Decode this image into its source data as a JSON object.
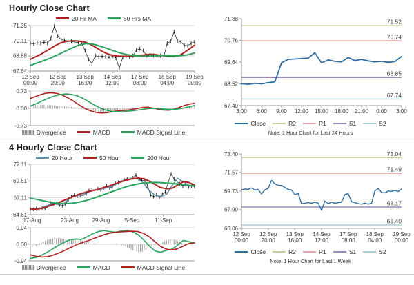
{
  "panels": {
    "hourly_title": "Hourly Close Chart",
    "four_hourly_title": "4 Hourly Close Chart"
  },
  "chart_data": [
    {
      "key": "hourly_main",
      "type": "line",
      "title": "Hourly Close Chart",
      "ylim": [
        67.64,
        71.35
      ],
      "grid": true,
      "yticks": [
        [
          71.35,
          "71.35"
        ],
        [
          70.11,
          "70.11"
        ],
        [
          68.88,
          "68.88"
        ],
        [
          67.64,
          "67.64"
        ]
      ],
      "xticks": [
        [
          0,
          "12 Sep",
          "00:00"
        ],
        [
          0.167,
          "12 Sep",
          "20:00"
        ],
        [
          0.333,
          "13 Sep",
          "16:00"
        ],
        [
          0.5,
          "14 Sep",
          "12:00"
        ],
        [
          0.667,
          "17 Sep",
          "08:00"
        ],
        [
          0.833,
          "18 Sep",
          "04:00"
        ],
        [
          1,
          "19 Sep",
          "00:00"
        ]
      ],
      "legend": [
        {
          "label": "20 Hr MA",
          "color": "#b02020"
        },
        {
          "label": "50 Hrs MA",
          "color": "#2aa35c"
        }
      ],
      "series": [
        {
          "name": "Close",
          "color": "#1a1a1a",
          "w": 0.7,
          "wick": 0.16,
          "values": [
            69.9,
            69.85,
            69.95,
            69.9,
            70.0,
            69.9,
            70.3,
            71.3,
            70.5,
            70.2,
            70.15,
            70.1,
            70.05,
            70.0,
            69.95,
            69.9,
            69.3,
            68.6,
            68.25,
            68.9,
            68.8,
            68.85,
            68.8,
            68.75,
            68.85,
            68.7,
            67.9,
            68.75,
            68.85,
            68.8,
            68.9,
            69.35,
            69.45,
            69.3,
            68.9,
            68.95,
            68.9,
            68.85,
            68.9,
            68.85,
            69.9,
            70.05,
            70.85,
            70.1,
            70.0,
            69.75,
            69.7,
            69.9,
            70.0
          ]
        },
        {
          "name": "20 Hr MA",
          "color": "#b02020",
          "w": 2,
          "values": [
            68.6,
            68.8,
            69.0,
            69.25,
            69.5,
            69.75,
            69.95,
            70.05,
            70.1,
            70.1,
            70.05,
            69.95,
            69.75,
            69.5,
            69.25,
            69.05,
            68.92,
            68.87,
            68.85,
            68.85,
            68.86,
            68.9,
            68.95,
            69.0,
            69.0,
            68.95,
            68.88,
            68.84,
            68.82,
            68.9,
            69.15,
            69.45,
            69.75
          ]
        },
        {
          "name": "50 Hrs MA",
          "color": "#2aa35c",
          "w": 2,
          "values": [
            68.1,
            68.25,
            68.4,
            68.55,
            68.72,
            68.9,
            69.1,
            69.3,
            69.5,
            69.68,
            69.82,
            69.88,
            69.85,
            69.75,
            69.62,
            69.48,
            69.32,
            69.18,
            69.06,
            68.97,
            68.9,
            68.87,
            68.85,
            68.85,
            68.86,
            68.88,
            68.9,
            68.9,
            68.88,
            68.88,
            68.92,
            69.0,
            69.12
          ]
        }
      ]
    },
    {
      "key": "hourly_macd",
      "type": "line",
      "ylim": [
        -0.73,
        0.73
      ],
      "grid": true,
      "yticks": [
        [
          0.73,
          "0.73"
        ],
        [
          0,
          "0.00"
        ],
        [
          -0.73,
          "-0.73"
        ]
      ],
      "xticks": [],
      "legend": [
        {
          "label": "Divergence",
          "color": "#9a9a9a",
          "type": "bar"
        },
        {
          "label": "MACD",
          "color": "#b02020"
        },
        {
          "label": "MACD Signal Line",
          "color": "#2aa35c"
        }
      ],
      "bars": {
        "color": "#9a9a9a",
        "values": [
          0.12,
          0.13,
          0.14,
          0.15,
          0.15,
          0.14,
          0.13,
          0.12,
          0.11,
          0.1,
          0.09,
          0.08,
          0.06,
          0.04,
          0.02,
          -0.02,
          -0.06,
          -0.1,
          -0.14,
          -0.17,
          -0.19,
          -0.2,
          -0.19,
          -0.17,
          -0.14,
          -0.11,
          -0.09,
          -0.07,
          -0.05,
          -0.04,
          -0.03,
          -0.02,
          0.0,
          0.02,
          0.04,
          0.05,
          0.04,
          0.02,
          -0.01,
          -0.03,
          -0.04,
          -0.05,
          -0.04,
          -0.02,
          0.0,
          0.03,
          0.06,
          0.08,
          0.09
        ]
      },
      "series": [
        {
          "name": "MACD",
          "color": "#b02020",
          "w": 1.6,
          "values": [
            0.42,
            0.5,
            0.58,
            0.64,
            0.66,
            0.64,
            0.58,
            0.48,
            0.36,
            0.22,
            0.08,
            -0.04,
            -0.13,
            -0.18,
            -0.2,
            -0.18,
            -0.14,
            -0.11,
            -0.09,
            -0.07,
            -0.04,
            0.0,
            0.04,
            0.05,
            0.0,
            -0.04,
            -0.07,
            -0.08,
            -0.04,
            0.04,
            0.12,
            0.18,
            0.21
          ]
        },
        {
          "name": "MACD Signal Line",
          "color": "#2aa35c",
          "w": 1.6,
          "values": [
            0.1,
            0.18,
            0.28,
            0.38,
            0.47,
            0.54,
            0.59,
            0.61,
            0.59,
            0.54,
            0.45,
            0.33,
            0.2,
            0.08,
            -0.02,
            -0.09,
            -0.13,
            -0.15,
            -0.14,
            -0.12,
            -0.1,
            -0.07,
            -0.04,
            -0.01,
            0.0,
            -0.01,
            -0.03,
            -0.05,
            -0.05,
            -0.02,
            0.02,
            0.07,
            0.12
          ]
        }
      ]
    },
    {
      "key": "hourly_pivot",
      "type": "line",
      "ylim": [
        67.4,
        71.88
      ],
      "grid": false,
      "note": "Note: 1 Hour Chart for Last 24 Hours",
      "yticks": [
        [
          71.88,
          "71.88"
        ],
        [
          70.76,
          "70.76"
        ],
        [
          69.64,
          "69.64"
        ],
        [
          68.52,
          "68.52"
        ],
        [
          67.4,
          "67.40"
        ]
      ],
      "xticks": [
        [
          0,
          "3:00"
        ],
        [
          0.125,
          "6:00"
        ],
        [
          0.25,
          "9:00"
        ],
        [
          0.375,
          "12:00"
        ],
        [
          0.5,
          "15:00"
        ],
        [
          0.625,
          "18:00"
        ],
        [
          0.75,
          "21:00"
        ],
        [
          0.875,
          "0:00"
        ],
        [
          1,
          "3:00"
        ]
      ],
      "hlines": [
        {
          "name": "R2",
          "value": 71.52,
          "label": "71.52",
          "color": "#c9cf9a"
        },
        {
          "name": "R1",
          "value": 70.74,
          "label": "70.74",
          "color": "#e0a8a4"
        },
        {
          "name": "S1",
          "value": 68.85,
          "label": "68.85",
          "color": "#958cbe"
        },
        {
          "name": "S2",
          "value": 67.74,
          "label": "67.74",
          "color": "#a6cfd8"
        }
      ],
      "legend": [
        {
          "label": "Close",
          "color": "#2e6da4"
        },
        {
          "label": "R2",
          "color": "#c9cf9a"
        },
        {
          "label": "R1",
          "color": "#e0a8a4"
        },
        {
          "label": "S1",
          "color": "#958cbe"
        },
        {
          "label": "S2",
          "color": "#a6cfd8"
        }
      ],
      "series": [
        {
          "name": "Close",
          "color": "#2e6da4",
          "w": 1.8,
          "values": [
            68.53,
            68.5,
            68.55,
            68.52,
            68.58,
            68.62,
            69.6,
            69.78,
            69.8,
            69.82,
            69.85,
            70.12,
            69.6,
            69.75,
            69.68,
            69.65,
            69.88,
            69.72,
            69.78,
            69.7,
            69.65,
            69.68,
            69.63,
            69.67,
            69.93
          ]
        }
      ]
    },
    {
      "key": "four_hourly_main",
      "type": "line",
      "title": "4 Hourly Close Chart",
      "ylim": [
        64.61,
        72.11
      ],
      "grid": true,
      "yticks": [
        [
          72.11,
          "72.11"
        ],
        [
          69.61,
          "69.61"
        ],
        [
          67.11,
          "67.11"
        ],
        [
          64.61,
          "64.61"
        ]
      ],
      "xticks": [
        [
          0.01,
          "17-Aug"
        ],
        [
          0.24,
          "23-Aug"
        ],
        [
          0.43,
          "29-Aug"
        ],
        [
          0.62,
          "5-Sep"
        ],
        [
          0.81,
          "11-Sep"
        ]
      ],
      "legend": [
        {
          "label": "20 Hour",
          "color": "#5f8cab"
        },
        {
          "label": "50 Hour",
          "color": "#b02020"
        },
        {
          "label": "200 Hour",
          "color": "#2aa35c"
        }
      ],
      "series": [
        {
          "name": "Close",
          "color": "#1a1a1a",
          "w": 0.7,
          "wick": 0.28,
          "values": [
            65.45,
            65.4,
            65.5,
            65.45,
            65.6,
            65.5,
            65.75,
            66.35,
            66.2,
            66.3,
            66.1,
            65.9,
            66.15,
            66.9,
            67.3,
            67.5,
            67.4,
            67.5,
            67.45,
            67.65,
            68.2,
            68.3,
            68.2,
            68.45,
            68.35,
            68.55,
            68.9,
            68.6,
            68.75,
            69.25,
            69.4,
            69.55,
            69.8,
            69.95,
            69.85,
            70.1,
            70.5,
            69.9,
            69.7,
            69.75,
            68.9,
            67.5,
            67.3,
            67.55,
            67.15,
            67.6,
            68.0,
            69.4,
            70.7,
            69.9,
            69.5,
            69.2,
            68.85,
            69.3,
            68.8,
            68.9,
            68.75
          ]
        },
        {
          "name": "20 Hour",
          "color": "#5f8cab",
          "w": 1.6,
          "values": [
            65.5,
            65.5,
            65.6,
            66.0,
            66.25,
            66.1,
            66.3,
            67.1,
            67.45,
            67.5,
            67.9,
            68.25,
            68.3,
            68.5,
            68.7,
            69.1,
            69.5,
            69.85,
            70.05,
            69.9,
            69.3,
            68.2,
            67.5,
            67.35,
            67.6,
            68.9,
            70.0,
            69.5,
            69.0,
            68.85
          ]
        },
        {
          "name": "50 Hour",
          "color": "#b02020",
          "w": 2,
          "values": [
            65.45,
            65.4,
            65.55,
            65.8,
            66.1,
            66.4,
            66.75,
            67.1,
            67.45,
            67.75,
            68.0,
            68.2,
            68.4,
            68.65,
            68.9,
            69.2,
            69.5,
            69.75,
            69.95,
            70.05,
            69.95,
            69.6,
            69.1,
            68.65,
            68.45,
            68.55,
            69.0,
            69.5,
            69.4,
            69.0
          ]
        },
        {
          "name": "200 Hour",
          "color": "#2aa35c",
          "w": 2,
          "values": [
            67.05,
            66.9,
            66.72,
            66.55,
            66.4,
            66.3,
            66.25,
            66.28,
            66.38,
            66.55,
            66.75,
            67.0,
            67.3,
            67.6,
            67.9,
            68.2,
            68.5,
            68.78,
            69.0,
            69.18,
            69.3,
            69.38,
            69.4,
            69.38,
            69.32,
            69.25,
            69.15,
            69.05,
            68.95,
            68.9
          ]
        }
      ]
    },
    {
      "key": "four_hourly_macd",
      "type": "line",
      "ylim": [
        -0.94,
        0.94
      ],
      "grid": true,
      "yticks": [
        [
          0.94,
          "0.94"
        ],
        [
          0,
          "0.00"
        ],
        [
          -0.94,
          "-0.94"
        ]
      ],
      "xticks": [],
      "legend": [
        {
          "label": "Divergence",
          "color": "#9a9a9a",
          "type": "bar"
        },
        {
          "label": "MACD",
          "color": "#2aa35c"
        },
        {
          "label": "MACD Signal Line",
          "color": "#b02020"
        }
      ],
      "bars": {
        "color": "#9a9a9a",
        "values": [
          -0.2,
          -0.12,
          -0.02,
          0.1,
          0.2,
          0.28,
          0.33,
          0.35,
          0.34,
          0.3,
          0.26,
          0.28,
          0.3,
          0.28,
          0.22,
          0.15,
          0.08,
          0.04,
          0.02,
          0.0,
          -0.02,
          -0.01,
          0.02,
          0.04,
          0.0,
          -0.08,
          -0.18,
          -0.3,
          -0.4,
          -0.45,
          -0.42,
          -0.3,
          -0.15,
          -0.05,
          0.0,
          0.08,
          0.18,
          0.26,
          0.3,
          0.24,
          0.12,
          0.04,
          0.0,
          -0.02,
          0.0
        ]
      },
      "series": [
        {
          "name": "MACD",
          "color": "#2aa35c",
          "w": 1.6,
          "values": [
            -0.8,
            -0.75,
            -0.62,
            -0.45,
            -0.25,
            -0.05,
            0.12,
            0.25,
            0.3,
            0.28,
            0.42,
            0.6,
            0.72,
            0.78,
            0.72,
            0.68,
            0.75,
            0.78,
            0.72,
            0.55,
            0.25,
            -0.1,
            -0.38,
            -0.45,
            -0.35,
            -0.28,
            -0.05,
            0.22,
            0.15,
            0.08
          ]
        },
        {
          "name": "MACD Signal Line",
          "color": "#b02020",
          "w": 1.6,
          "values": [
            -0.6,
            -0.68,
            -0.72,
            -0.7,
            -0.62,
            -0.5,
            -0.36,
            -0.2,
            -0.05,
            0.08,
            0.18,
            0.3,
            0.42,
            0.54,
            0.63,
            0.68,
            0.71,
            0.73,
            0.74,
            0.72,
            0.62,
            0.42,
            0.15,
            -0.12,
            -0.28,
            -0.32,
            -0.25,
            -0.1,
            0.05,
            0.08
          ]
        }
      ]
    },
    {
      "key": "four_hourly_pivot",
      "type": "line",
      "ylim": [
        66.06,
        73.4
      ],
      "grid": false,
      "note": "Note: 1 Hour Chart for Last 1 Week",
      "yticks": [
        [
          73.4,
          "73.40"
        ],
        [
          71.57,
          "71.57"
        ],
        [
          69.73,
          "69.73"
        ],
        [
          67.9,
          "67.90"
        ],
        [
          66.06,
          "66.06"
        ]
      ],
      "xticks": [
        [
          0,
          "12 Sep",
          "00:00"
        ],
        [
          0.167,
          "12 Sep",
          "20:00"
        ],
        [
          0.333,
          "13 Sep",
          "16:00"
        ],
        [
          0.5,
          "14 Sep",
          "12:00"
        ],
        [
          0.667,
          "17 Sep",
          "08:00"
        ],
        [
          0.833,
          "18 Sep",
          "04:00"
        ],
        [
          1,
          "19 Sep",
          "00:00"
        ]
      ],
      "hlines": [
        {
          "name": "R2",
          "value": 73.04,
          "label": "73.04",
          "color": "#c9cf9a"
        },
        {
          "name": "R1",
          "value": 71.49,
          "label": "71.49",
          "color": "#e0a8a4"
        },
        {
          "name": "S1",
          "value": 68.17,
          "label": "68.17",
          "color": "#958cbe"
        },
        {
          "name": "S2",
          "value": 66.4,
          "label": "66.40",
          "color": "#a6cfd8"
        }
      ],
      "legend": [
        {
          "label": "Close",
          "color": "#2e6da4"
        },
        {
          "label": "R2",
          "color": "#c9cf9a"
        },
        {
          "label": "R1",
          "color": "#e0a8a4"
        },
        {
          "label": "S1",
          "color": "#958cbe"
        },
        {
          "label": "S2",
          "color": "#a6cfd8"
        }
      ],
      "series": [
        {
          "name": "Close",
          "color": "#2e6da4",
          "w": 1.4,
          "values": [
            69.85,
            69.95,
            69.9,
            70.05,
            69.85,
            69.9,
            69.45,
            69.85,
            70.0,
            70.8,
            70.45,
            70.3,
            70.3,
            70.1,
            69.9,
            69.85,
            69.4,
            69.5,
            68.5,
            68.55,
            68.6,
            68.55,
            68.65,
            68.55,
            67.85,
            68.75,
            68.5,
            68.65,
            68.55,
            68.6,
            68.65,
            69.4,
            69.5,
            68.7,
            68.6,
            68.5,
            68.45,
            68.55,
            68.45,
            68.55,
            69.75,
            70.0,
            69.6,
            69.55,
            69.75,
            69.7,
            69.8,
            69.7,
            69.95
          ]
        }
      ]
    }
  ]
}
